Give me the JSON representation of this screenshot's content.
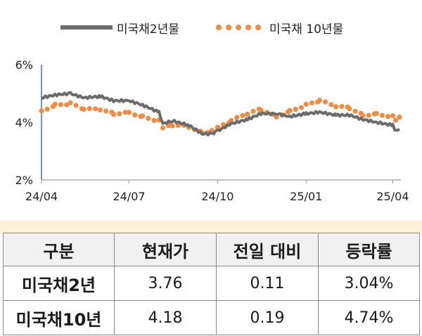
{
  "chart_data": {
    "type": "line",
    "x_tick_labels": [
      "24/04",
      "24/07",
      "24/10",
      "25/01",
      "25/04"
    ],
    "y_tick_labels": [
      "6%",
      "4%",
      "2%"
    ],
    "ylim": [
      2,
      6
    ],
    "series": [
      {
        "name": "미국채2년물",
        "style": "solid",
        "color": "#6b6b6b",
        "x": [
          "2024-04-01",
          "2024-04-15",
          "2024-05-01",
          "2024-05-15",
          "2024-06-01",
          "2024-06-15",
          "2024-07-01",
          "2024-07-15",
          "2024-08-01",
          "2024-08-05",
          "2024-08-15",
          "2024-09-01",
          "2024-09-15",
          "2024-09-25",
          "2024-10-01",
          "2024-10-15",
          "2024-11-01",
          "2024-11-15",
          "2024-12-01",
          "2024-12-15",
          "2025-01-01",
          "2025-01-15",
          "2025-02-01",
          "2025-02-15",
          "2025-03-01",
          "2025-03-15",
          "2025-04-01",
          "2025-04-04",
          "2025-04-08"
        ],
        "y": [
          4.85,
          4.95,
          5.0,
          4.85,
          4.9,
          4.75,
          4.75,
          4.6,
          4.35,
          3.95,
          4.05,
          3.9,
          3.6,
          3.6,
          3.7,
          3.95,
          4.1,
          4.3,
          4.3,
          4.2,
          4.3,
          4.35,
          4.25,
          4.25,
          4.1,
          4.0,
          3.9,
          3.7,
          3.76
        ]
      },
      {
        "name": "미국채 10년물",
        "style": "dotted",
        "color": "#ef8d45",
        "x": [
          "2024-04-01",
          "2024-04-15",
          "2024-05-01",
          "2024-05-15",
          "2024-06-01",
          "2024-06-15",
          "2024-07-01",
          "2024-07-15",
          "2024-08-01",
          "2024-08-05",
          "2024-08-15",
          "2024-09-01",
          "2024-09-15",
          "2024-09-25",
          "2024-10-01",
          "2024-10-15",
          "2024-11-01",
          "2024-11-15",
          "2024-12-01",
          "2024-12-15",
          "2025-01-01",
          "2025-01-15",
          "2025-02-01",
          "2025-02-15",
          "2025-03-01",
          "2025-03-15",
          "2025-04-01",
          "2025-04-04",
          "2025-04-08"
        ],
        "y": [
          4.4,
          4.6,
          4.65,
          4.45,
          4.45,
          4.3,
          4.35,
          4.2,
          4.05,
          3.8,
          3.9,
          3.85,
          3.65,
          3.7,
          3.8,
          4.05,
          4.3,
          4.45,
          4.2,
          4.4,
          4.6,
          4.75,
          4.55,
          4.5,
          4.25,
          4.3,
          4.2,
          4.05,
          4.18
        ]
      }
    ]
  },
  "table": {
    "headers": [
      "구분",
      "현재가",
      "전일 대비",
      "등락률"
    ],
    "rows": [
      [
        "미국채2년",
        "3.76",
        "0.11",
        "3.04%"
      ],
      [
        "미국채10년",
        "4.18",
        "0.19",
        "4.74%"
      ]
    ]
  }
}
